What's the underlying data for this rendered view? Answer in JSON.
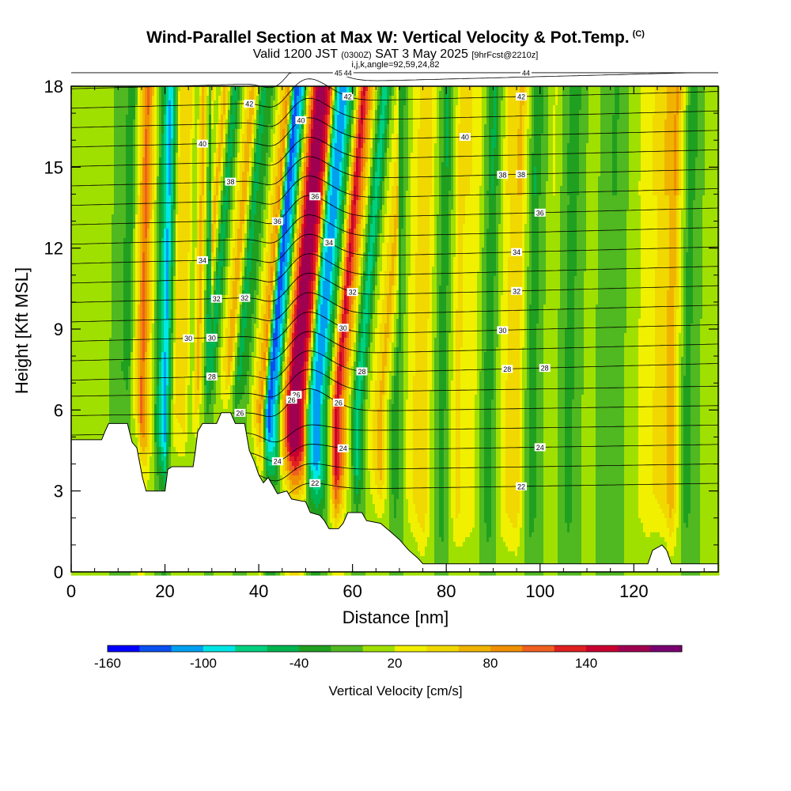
{
  "chart_data": {
    "type": "heatmap",
    "title": "Wind-Parallel Section at Max W: Vertical Velocity & Pot.Temp.",
    "title_suffix": "(C)",
    "subtitle_main": "Valid 1200 JST",
    "subtitle_utc": "(0300Z)",
    "subtitle_date": "SAT 3 May 2025",
    "subtitle_fcst": "[9hrFcst@2210z]",
    "params_line": "i,j,k,angle=92,59,24,82",
    "xlabel": "Distance [nm]",
    "ylabel": "Height [Kft MSL]",
    "xlim": [
      0,
      138
    ],
    "ylim": [
      0,
      18
    ],
    "x_ticks": [
      "0",
      "20",
      "40",
      "60",
      "80",
      "100",
      "120"
    ],
    "y_ticks": [
      "0",
      "3",
      "6",
      "9",
      "12",
      "15",
      "18"
    ],
    "colorbar": {
      "label": "Vertical Velocity [cm/s]",
      "tick_labels": [
        "-160",
        "-100",
        "-40",
        "20",
        "80",
        "140"
      ],
      "tick_values": [
        -160,
        -100,
        -40,
        20,
        80,
        140
      ],
      "range": [
        -160,
        200
      ],
      "colors": [
        "#0000ff",
        "#0a50f0",
        "#00a0f0",
        "#00e6e6",
        "#00d080",
        "#00b450",
        "#20a020",
        "#50b820",
        "#a0e000",
        "#f0f000",
        "#f0d800",
        "#f0b400",
        "#f09000",
        "#f06020",
        "#e02020",
        "#c80030",
        "#a00050",
        "#780070"
      ]
    },
    "theta_contour_labels": [
      "22",
      "22",
      "24",
      "24",
      "24",
      "26",
      "26",
      "26",
      "26",
      "28",
      "28",
      "28",
      "28",
      "30",
      "30",
      "30",
      "30",
      "32",
      "32",
      "32",
      "32",
      "34",
      "34",
      "34",
      "36",
      "36",
      "36",
      "38",
      "38",
      "38",
      "40",
      "40",
      "40",
      "42",
      "42",
      "42",
      "44",
      "44",
      "45"
    ],
    "terrain_profile_kft": [
      [
        0,
        4.9
      ],
      [
        6.5,
        4.9
      ],
      [
        7.2,
        5.2
      ],
      [
        8,
        5.5
      ],
      [
        12,
        5.5
      ],
      [
        13,
        4.8
      ],
      [
        14,
        4.6
      ],
      [
        15.2,
        3.5
      ],
      [
        16,
        3.0
      ],
      [
        20,
        3.0
      ],
      [
        20.6,
        3.8
      ],
      [
        21.5,
        3.9
      ],
      [
        26,
        3.9
      ],
      [
        26.5,
        4.5
      ],
      [
        27,
        5.2
      ],
      [
        28,
        5.5
      ],
      [
        31,
        5.5
      ],
      [
        32,
        5.9
      ],
      [
        34,
        5.9
      ],
      [
        35,
        5.5
      ],
      [
        37,
        5.5
      ],
      [
        38,
        4.5
      ],
      [
        39,
        4.1
      ],
      [
        40,
        3.6
      ],
      [
        41,
        3.3
      ],
      [
        42,
        3.5
      ],
      [
        43,
        3.2
      ],
      [
        44,
        2.9
      ],
      [
        46,
        3.0
      ],
      [
        47,
        2.7
      ],
      [
        50,
        2.6
      ],
      [
        51,
        2.2
      ],
      [
        53,
        2.1
      ],
      [
        54,
        1.9
      ],
      [
        55,
        1.6
      ],
      [
        57,
        1.6
      ],
      [
        58,
        1.8
      ],
      [
        59,
        2.2
      ],
      [
        62,
        2.2
      ],
      [
        63,
        1.9
      ],
      [
        66,
        1.8
      ],
      [
        68,
        1.5
      ],
      [
        70,
        1.2
      ],
      [
        72,
        0.8
      ],
      [
        74,
        0.5
      ],
      [
        75,
        0.3
      ],
      [
        123,
        0.3
      ],
      [
        124,
        0.8
      ],
      [
        126,
        1.0
      ],
      [
        127,
        0.8
      ],
      [
        128,
        0.3
      ],
      [
        138,
        0.3
      ]
    ],
    "w_bands_cm_s": [
      [
        2,
        10
      ],
      [
        7,
        8
      ],
      [
        12,
        -30
      ],
      [
        14,
        60
      ],
      [
        15,
        110
      ],
      [
        17,
        25
      ],
      [
        19,
        -70
      ],
      [
        20,
        -110
      ],
      [
        22,
        40
      ],
      [
        24,
        55
      ],
      [
        25.5,
        0
      ],
      [
        27,
        75
      ],
      [
        29,
        -60
      ],
      [
        31,
        20
      ],
      [
        33,
        80
      ],
      [
        35,
        -50
      ],
      [
        37,
        -20
      ],
      [
        39,
        45
      ],
      [
        40.5,
        90
      ],
      [
        42,
        -140
      ],
      [
        43.5,
        -90
      ],
      [
        45,
        60
      ],
      [
        46.5,
        160
      ],
      [
        48,
        180
      ],
      [
        49.5,
        120
      ],
      [
        51,
        -90
      ],
      [
        52.5,
        -120
      ],
      [
        54.5,
        -20
      ],
      [
        56.5,
        150
      ],
      [
        58.5,
        60
      ],
      [
        61,
        -80
      ],
      [
        63,
        10
      ],
      [
        66,
        70
      ],
      [
        69,
        -40
      ],
      [
        72,
        30
      ],
      [
        75,
        60
      ],
      [
        79,
        -40
      ],
      [
        82,
        45
      ],
      [
        86,
        25
      ],
      [
        89,
        -40
      ],
      [
        92,
        35
      ],
      [
        95,
        55
      ],
      [
        98,
        -35
      ],
      [
        102,
        20
      ],
      [
        106,
        -30
      ],
      [
        110,
        10
      ],
      [
        115,
        -20
      ],
      [
        120,
        15
      ],
      [
        125,
        45
      ],
      [
        128,
        70
      ],
      [
        131,
        -30
      ],
      [
        135,
        10
      ]
    ]
  }
}
